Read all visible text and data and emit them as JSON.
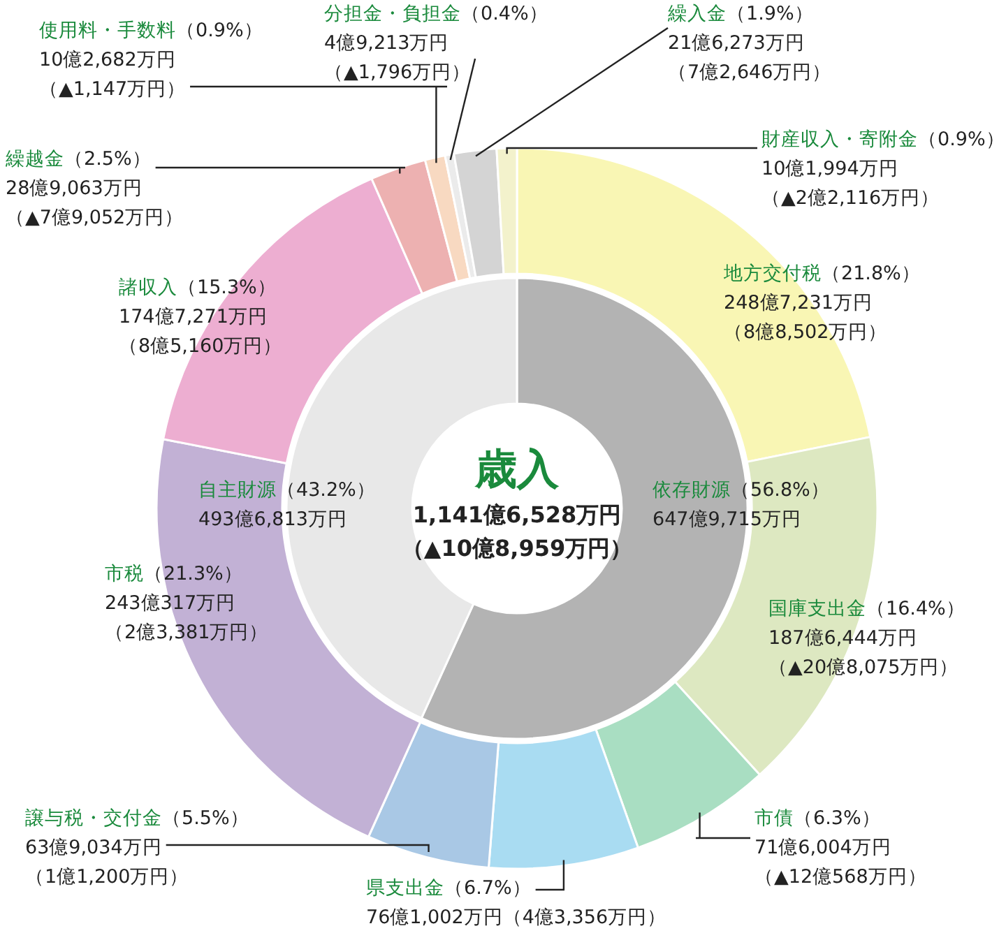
{
  "chart_data": [
    {
      "type": "donut",
      "title": "歳入",
      "annotations": [
        "1,141億6,528万円",
        "（▲10億8,959万円）"
      ],
      "categories": [
        "依存財源",
        "自主財源"
      ],
      "values": [
        56.8,
        43.2
      ],
      "colors": [
        "#b3b3b3",
        "#e8e8e8"
      ],
      "value_labels": [
        "（56.8%）647億9,715万円",
        "（43.2%）493億6,813万円"
      ]
    },
    {
      "type": "donut",
      "categories": [
        "地方交付税",
        "国庫支出金",
        "市債",
        "県支出金",
        "譲与税・交付金",
        "市税",
        "諸収入",
        "繰越金",
        "使用料・手数料",
        "分担金・負担金",
        "繰入金",
        "財産収入・寄附金"
      ],
      "values": [
        21.8,
        16.4,
        6.3,
        6.7,
        5.5,
        21.3,
        15.3,
        2.5,
        0.9,
        0.4,
        1.9,
        0.9
      ],
      "colors": [
        "#f9f6b4",
        "#dde8c1",
        "#a9dec2",
        "#a9dcf2",
        "#a9c8e5",
        "#c2b1d5",
        "#edaed1",
        "#edb1b1",
        "#f8d9c1",
        "#ebebeb",
        "#d4d4d4",
        "#f3f2cc"
      ],
      "value_labels": [
        "（21.8%）248億7,231万円（8億8,502万円）",
        "（16.4%）187億6,444万円（▲20億8,075万円）",
        "（6.3%）71億6,004万円（▲12億568万円）",
        "（6.7%）76億1,002万円（4億3,356万円）",
        "（5.5%）63億9,034万円（1億1,200万円）",
        "（21.3%）243億317万円（2億3,381万円）",
        "（15.3%）174億7,271万円（8億5,160万円）",
        "（2.5%）28億9,063万円（▲7億9,052万円）",
        "（0.9%）10億2,682万円（▲1,147万円）",
        "（0.4%）4億9,213万円（▲1,796万円）",
        "（1.9%）21億6,273万円（7億2,646万円）",
        "（0.9%）10億1,994万円（▲2億2,116万円）"
      ]
    }
  ]
}
